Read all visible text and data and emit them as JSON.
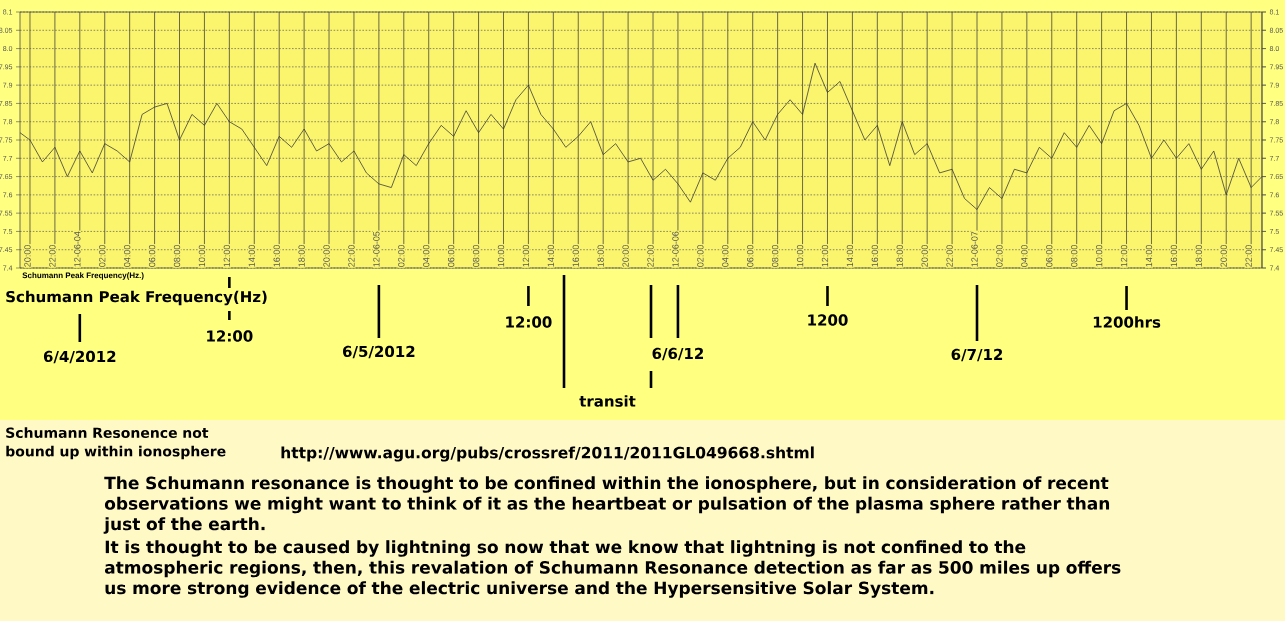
{
  "chart_data": {
    "type": "line",
    "title": "Schumann Peak Frequency(Hz)",
    "x": [
      "2012-06-03T19:12",
      "2012-06-03T20:00",
      "2012-06-03T21:00",
      "2012-06-03T22:00",
      "2012-06-03T23:00",
      "2012-06-04T00:00",
      "2012-06-04T01:00",
      "2012-06-04T02:00",
      "2012-06-04T03:00",
      "2012-06-04T04:00",
      "2012-06-04T05:00",
      "2012-06-04T06:00",
      "2012-06-04T07:00",
      "2012-06-04T08:00",
      "2012-06-04T09:00",
      "2012-06-04T10:00",
      "2012-06-04T11:00",
      "2012-06-04T12:00",
      "2012-06-04T13:00",
      "2012-06-04T14:00",
      "2012-06-04T15:00",
      "2012-06-04T16:00",
      "2012-06-04T17:00",
      "2012-06-04T18:00",
      "2012-06-04T19:00",
      "2012-06-04T20:00",
      "2012-06-04T21:00",
      "2012-06-04T22:00",
      "2012-06-04T23:00",
      "2012-06-05T00:00",
      "2012-06-05T01:00",
      "2012-06-05T02:00",
      "2012-06-05T03:00",
      "2012-06-05T04:00",
      "2012-06-05T05:00",
      "2012-06-05T06:00",
      "2012-06-05T07:00",
      "2012-06-05T08:00",
      "2012-06-05T09:00",
      "2012-06-05T10:00",
      "2012-06-05T11:00",
      "2012-06-05T12:00",
      "2012-06-05T13:00",
      "2012-06-05T14:00",
      "2012-06-05T15:00",
      "2012-06-05T16:00",
      "2012-06-05T17:00",
      "2012-06-05T18:00",
      "2012-06-05T19:00",
      "2012-06-05T20:00",
      "2012-06-05T21:00",
      "2012-06-05T22:00",
      "2012-06-05T23:00",
      "2012-06-06T00:00",
      "2012-06-06T01:00",
      "2012-06-06T02:00",
      "2012-06-06T03:00",
      "2012-06-06T04:00",
      "2012-06-06T05:00",
      "2012-06-06T06:00",
      "2012-06-06T07:00",
      "2012-06-06T08:00",
      "2012-06-06T09:00",
      "2012-06-06T10:00",
      "2012-06-06T11:00",
      "2012-06-06T12:00",
      "2012-06-06T13:00",
      "2012-06-06T14:00",
      "2012-06-06T15:00",
      "2012-06-06T16:00",
      "2012-06-06T17:00",
      "2012-06-06T18:00",
      "2012-06-06T19:00",
      "2012-06-06T20:00",
      "2012-06-06T21:00",
      "2012-06-06T22:00",
      "2012-06-06T23:00",
      "2012-06-07T00:00",
      "2012-06-07T01:00",
      "2012-06-07T02:00",
      "2012-06-07T03:00",
      "2012-06-07T04:00",
      "2012-06-07T05:00",
      "2012-06-07T06:00",
      "2012-06-07T07:00",
      "2012-06-07T08:00",
      "2012-06-07T09:00",
      "2012-06-07T10:00",
      "2012-06-07T11:00",
      "2012-06-07T12:00",
      "2012-06-07T13:00",
      "2012-06-07T14:00",
      "2012-06-07T15:00",
      "2012-06-07T16:00",
      "2012-06-07T17:00",
      "2012-06-07T18:00",
      "2012-06-07T19:00",
      "2012-06-07T20:00",
      "2012-06-07T21:00",
      "2012-06-07T22:00",
      "2012-06-07T22:52"
    ],
    "values": [
      7.77,
      7.75,
      7.69,
      7.73,
      7.65,
      7.72,
      7.66,
      7.74,
      7.72,
      7.69,
      7.82,
      7.84,
      7.85,
      7.75,
      7.82,
      7.79,
      7.85,
      7.8,
      7.78,
      7.73,
      7.68,
      7.76,
      7.73,
      7.78,
      7.72,
      7.74,
      7.69,
      7.72,
      7.66,
      7.63,
      7.62,
      7.71,
      7.68,
      7.74,
      7.79,
      7.76,
      7.83,
      7.77,
      7.82,
      7.78,
      7.86,
      7.9,
      7.82,
      7.78,
      7.73,
      7.76,
      7.8,
      7.71,
      7.74,
      7.69,
      7.7,
      7.64,
      7.67,
      7.63,
      7.58,
      7.66,
      7.64,
      7.7,
      7.73,
      7.8,
      7.75,
      7.82,
      7.86,
      7.82,
      7.96,
      7.88,
      7.91,
      7.83,
      7.75,
      7.79,
      7.68,
      7.8,
      7.71,
      7.74,
      7.66,
      7.67,
      7.59,
      7.56,
      7.62,
      7.59,
      7.67,
      7.66,
      7.73,
      7.7,
      7.77,
      7.73,
      7.79,
      7.74,
      7.83,
      7.85,
      7.79,
      7.7,
      7.75,
      7.7,
      7.74,
      7.67,
      7.72,
      7.6,
      7.7,
      7.62,
      7.65
    ],
    "color": "#333333",
    "marker": "none",
    "line_style": "solid",
    "grid": true,
    "xlim": [
      "2012-06-03T19:12",
      "2012-06-07T22:52"
    ],
    "xticks": [
      {
        "value": "2012-06-03T20:00",
        "label": "20:00"
      },
      {
        "value": "2012-06-03T22:00",
        "label": "22:00"
      },
      {
        "value": "2012-06-04T00:00",
        "label": "12-06-04"
      },
      {
        "value": "2012-06-04T02:00",
        "label": "02:00"
      },
      {
        "value": "2012-06-04T04:00",
        "label": "04:00"
      },
      {
        "value": "2012-06-04T06:00",
        "label": "06:00"
      },
      {
        "value": "2012-06-04T08:00",
        "label": "08:00"
      },
      {
        "value": "2012-06-04T10:00",
        "label": "10:00"
      },
      {
        "value": "2012-06-04T12:00",
        "label": "12:00"
      },
      {
        "value": "2012-06-04T14:00",
        "label": "14:00"
      },
      {
        "value": "2012-06-04T16:00",
        "label": "16:00"
      },
      {
        "value": "2012-06-04T18:00",
        "label": "18:00"
      },
      {
        "value": "2012-06-04T20:00",
        "label": "20:00"
      },
      {
        "value": "2012-06-04T22:00",
        "label": "22:00"
      },
      {
        "value": "2012-06-05T00:00",
        "label": "12-06-05"
      },
      {
        "value": "2012-06-05T02:00",
        "label": "02:00"
      },
      {
        "value": "2012-06-05T04:00",
        "label": "04:00"
      },
      {
        "value": "2012-06-05T06:00",
        "label": "06:00"
      },
      {
        "value": "2012-06-05T08:00",
        "label": "08:00"
      },
      {
        "value": "2012-06-05T10:00",
        "label": "10:00"
      },
      {
        "value": "2012-06-05T12:00",
        "label": "12:00"
      },
      {
        "value": "2012-06-05T14:00",
        "label": "14:00"
      },
      {
        "value": "2012-06-05T16:00",
        "label": "16:00"
      },
      {
        "value": "2012-06-05T18:00",
        "label": "18:00"
      },
      {
        "value": "2012-06-05T20:00",
        "label": "20:00"
      },
      {
        "value": "2012-06-05T22:00",
        "label": "22:00"
      },
      {
        "value": "2012-06-06T00:00",
        "label": "12-06-06"
      },
      {
        "value": "2012-06-06T02:00",
        "label": "02:00"
      },
      {
        "value": "2012-06-06T04:00",
        "label": "04:00"
      },
      {
        "value": "2012-06-06T06:00",
        "label": "06:00"
      },
      {
        "value": "2012-06-06T08:00",
        "label": "08:00"
      },
      {
        "value": "2012-06-06T10:00",
        "label": "10:00"
      },
      {
        "value": "2012-06-06T12:00",
        "label": "12:00"
      },
      {
        "value": "2012-06-06T14:00",
        "label": "14:00"
      },
      {
        "value": "2012-06-06T16:00",
        "label": "16:00"
      },
      {
        "value": "2012-06-06T18:00",
        "label": "18:00"
      },
      {
        "value": "2012-06-06T20:00",
        "label": "20:00"
      },
      {
        "value": "2012-06-06T22:00",
        "label": "22:00"
      },
      {
        "value": "2012-06-07T00:00",
        "label": "12-06-07"
      },
      {
        "value": "2012-06-07T02:00",
        "label": "02:00"
      },
      {
        "value": "2012-06-07T04:00",
        "label": "04:00"
      },
      {
        "value": "2012-06-07T06:00",
        "label": "06:00"
      },
      {
        "value": "2012-06-07T08:00",
        "label": "08:00"
      },
      {
        "value": "2012-06-07T10:00",
        "label": "10:00"
      },
      {
        "value": "2012-06-07T12:00",
        "label": "12:00"
      },
      {
        "value": "2012-06-07T14:00",
        "label": "14:00"
      },
      {
        "value": "2012-06-07T16:00",
        "label": "16:00"
      },
      {
        "value": "2012-06-07T18:00",
        "label": "18:00"
      },
      {
        "value": "2012-06-07T20:00",
        "label": "20:00"
      },
      {
        "value": "2012-06-07T22:00",
        "label": "22:00"
      }
    ],
    "ylim": [
      7.4,
      8.1
    ],
    "yticks": [
      7.4,
      7.45,
      7.5,
      7.55,
      7.6,
      7.65,
      7.7,
      7.75,
      7.8,
      7.85,
      7.9,
      7.95,
      {
        "value": 8,
        "label": "8.0"
      },
      8.05,
      8.1
    ],
    "y2lim": [
      7.4,
      8.1
    ],
    "y2ticks": [
      7.4,
      7.45,
      7.5,
      7.55,
      7.6,
      7.65,
      7.7,
      7.75,
      7.8,
      7.85,
      7.9,
      7.95,
      {
        "value": 8,
        "label": "8.0"
      },
      8.05,
      8.1
    ],
    "annotations": [
      "Schumann Peak Frequency(Hz.)",
      {
        "text": "6/4/2012",
        "x": "2012-06-04T00:00"
      },
      {
        "text": "12:00",
        "x": "2012-06-04T12:00"
      },
      {
        "text": "6/5/2012",
        "x": "2012-06-05T00:00"
      },
      {
        "text": "12:00",
        "x": "2012-06-05T12:00"
      },
      "transit",
      {
        "text": "6/6/12",
        "x": "2012-06-06T00:00"
      },
      {
        "text": "1200",
        "x": "2012-06-06T12:00"
      },
      {
        "text": "6/7/12",
        "x": "2012-06-07T00:00"
      },
      {
        "text": "1200hrs",
        "x": "2012-06-07T12:00"
      },
      "Schumann Resonence not bound up within ionosphere",
      "http://www.agu.org/pubs/crossref/2011/2011GL049668.shtml",
      "The Schumann resonance is thought to be confined within the ionosphere, but in consideration of recent observations we might want to think of it as the heartbeat or pulsation of the plasma sphere rather than just of the earth.",
      "It is thought to be caused by lightning so now that we know that lightning is not confined to the atmospheric regions, then, this revalation of Schumann Resonance detection as far as 500 miles up offers us more strong evidence of the electric universe and the Hypersensitive Solar System."
    ]
  }
}
